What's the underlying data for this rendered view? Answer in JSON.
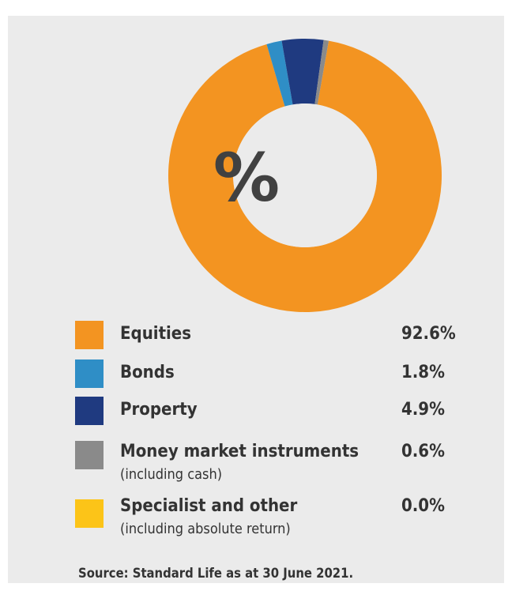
{
  "chart_data": {
    "type": "pie",
    "center_label": "%",
    "categories": [
      "Equities",
      "Bonds",
      "Property",
      "Money market instruments",
      "Specialist and other"
    ],
    "sublabels": [
      "",
      "",
      "",
      "(including cash)",
      "(including absolute return)"
    ],
    "values": [
      92.6,
      1.8,
      4.9,
      0.6,
      0.0
    ],
    "value_labels": [
      "92.6%",
      "1.8%",
      "4.9%",
      "0.6%",
      "0.0%"
    ],
    "colors": [
      "#f39421",
      "#2f8ec6",
      "#1f3a80",
      "#8a8a8a",
      "#fcc418"
    ],
    "legend": "below",
    "source": "Source: Standard Life as at 30 June 2021."
  }
}
